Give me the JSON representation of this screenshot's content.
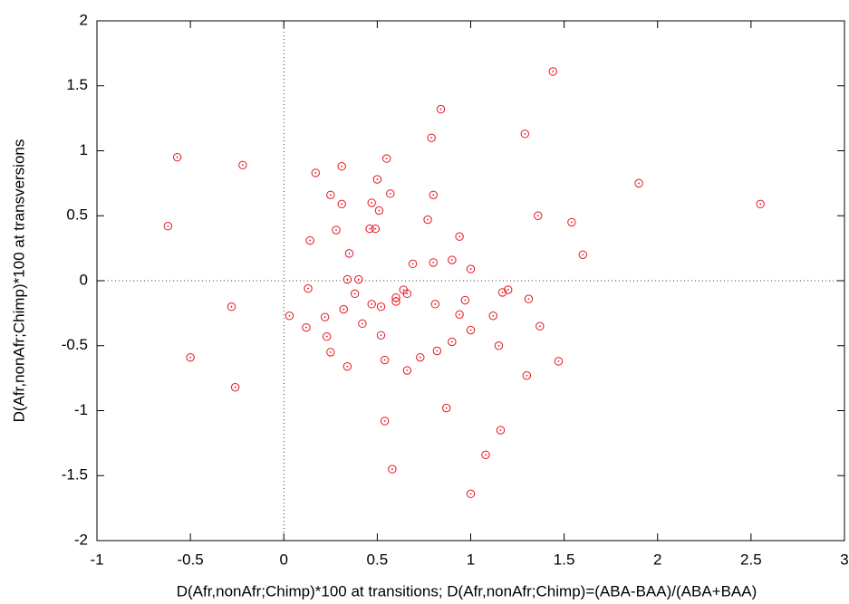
{
  "chart_data": {
    "type": "scatter",
    "xlabel": "D(Afr,nonAfr;Chimp)*100 at transitions; D(Afr,nonAfr;Chimp)=(ABA-BAA)/(ABA+BAA)",
    "ylabel": "D(Afr,nonAfr;Chimp)*100 at transversions",
    "xlim": [
      -1,
      3
    ],
    "ylim": [
      -2,
      2
    ],
    "xticks": [
      -1,
      -0.5,
      0,
      0.5,
      1,
      1.5,
      2,
      2.5,
      3
    ],
    "yticks": [
      -2,
      -1.5,
      -1,
      -0.5,
      0,
      0.5,
      1,
      1.5,
      2
    ],
    "color": "#e8141c",
    "zero_lines": true,
    "x": [
      -0.62,
      -0.57,
      -0.22,
      -0.28,
      -0.5,
      -0.26,
      0.03,
      0.13,
      0.14,
      0.17,
      0.12,
      0.22,
      0.23,
      0.25,
      0.25,
      0.28,
      0.31,
      0.31,
      0.32,
      0.34,
      0.34,
      0.35,
      0.38,
      0.4,
      0.42,
      0.46,
      0.47,
      0.47,
      0.49,
      0.5,
      0.51,
      0.52,
      0.52,
      0.54,
      0.55,
      0.57,
      0.6,
      0.6,
      0.64,
      0.66,
      0.66,
      0.69,
      0.73,
      0.77,
      0.79,
      0.8,
      0.8,
      0.81,
      0.82,
      0.84,
      0.87,
      0.9,
      0.9,
      0.94,
      0.94,
      0.97,
      1.0,
      1.0,
      1.0,
      1.08,
      1.12,
      1.15,
      1.16,
      1.17,
      1.2,
      1.29,
      1.3,
      1.31,
      1.36,
      1.37,
      1.44,
      1.47,
      1.54,
      1.6,
      1.9,
      2.55,
      0.54,
      0.58
    ],
    "values": [
      0.42,
      0.95,
      0.89,
      -0.2,
      -0.59,
      -0.82,
      -0.27,
      -0.06,
      0.31,
      0.83,
      -0.36,
      -0.28,
      -0.43,
      -0.55,
      0.66,
      0.39,
      0.88,
      0.59,
      -0.22,
      0.01,
      -0.66,
      0.21,
      -0.1,
      0.01,
      -0.33,
      0.4,
      0.6,
      -0.18,
      0.4,
      0.78,
      0.54,
      -0.2,
      -0.42,
      -0.61,
      0.94,
      0.67,
      -0.13,
      -0.16,
      -0.07,
      -0.1,
      -0.69,
      0.13,
      -0.59,
      0.47,
      1.1,
      0.14,
      0.66,
      -0.18,
      -0.54,
      1.32,
      -0.98,
      0.16,
      -0.47,
      0.34,
      -0.26,
      -0.15,
      0.09,
      -0.38,
      -1.64,
      -1.34,
      -0.27,
      -0.5,
      -1.15,
      -0.09,
      -0.07,
      1.13,
      -0.73,
      -0.14,
      0.5,
      -0.35,
      1.61,
      -0.62,
      0.45,
      0.2,
      0.75,
      0.59,
      -1.08,
      -1.45
    ]
  }
}
